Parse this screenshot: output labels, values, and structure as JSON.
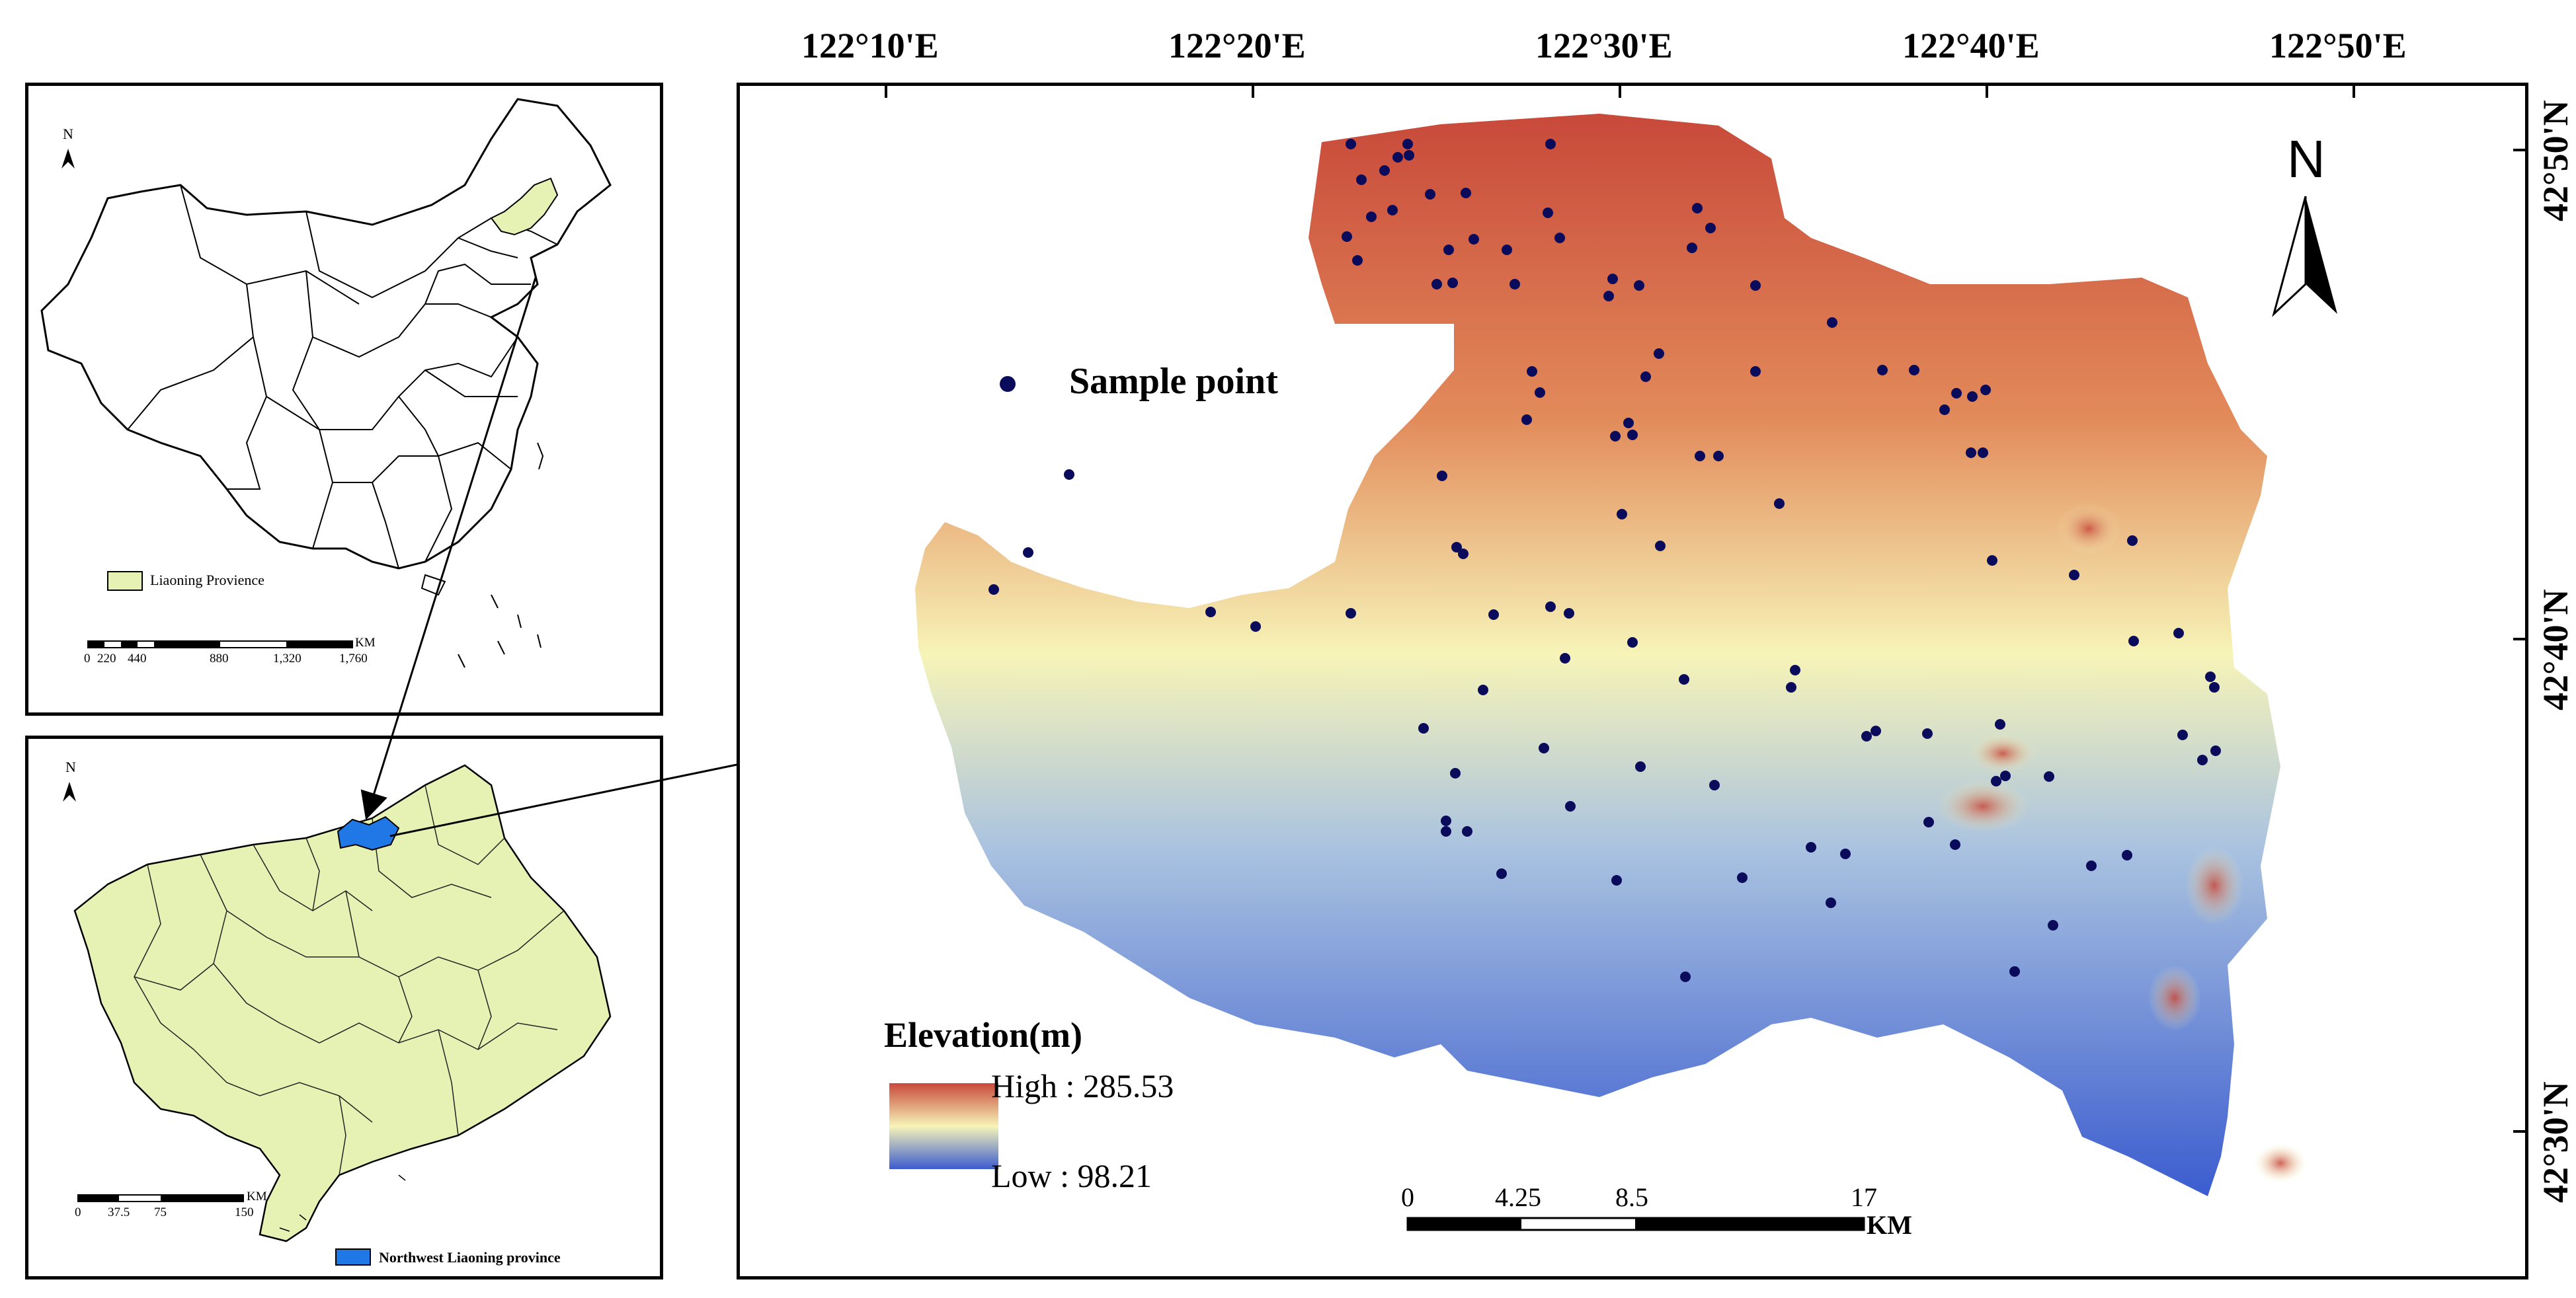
{
  "china_inset": {
    "north": "N",
    "legend_label": "Liaoning Provience",
    "highlight_color": "#e6f2b4",
    "scale_unit": "KM",
    "scale_ticks": [
      "0",
      "220",
      "440",
      "880",
      "1,320",
      "1,760"
    ]
  },
  "liaoning_inset": {
    "north": "N",
    "legend_label": "Northwest Liaoning province",
    "province_color": "#e6f2b4",
    "study_area_color": "#1f78e6",
    "scale_unit": "KM",
    "scale_ticks": [
      "0",
      "37.5",
      "75",
      "150"
    ]
  },
  "main_map": {
    "north": "N",
    "longitude_labels": [
      "122°10'E",
      "122°20'E",
      "122°30'E",
      "122°40'E",
      "122°50'E"
    ],
    "latitude_labels": [
      "42°50'N",
      "42°40'N",
      "42°30'N"
    ],
    "sample_legend": "Sample point",
    "sample_color": "#0b0b5c",
    "elevation_legend": {
      "title": "Elevation(m)",
      "high": "High : 285.53",
      "low": "Low : 98.21",
      "high_color": "#c8493a",
      "mid_color": "#f7f4b8",
      "low_color": "#3b5ccf"
    },
    "scale_unit": "KM",
    "scale_ticks": [
      "0",
      "4.25",
      "8.5",
      "17"
    ]
  }
}
